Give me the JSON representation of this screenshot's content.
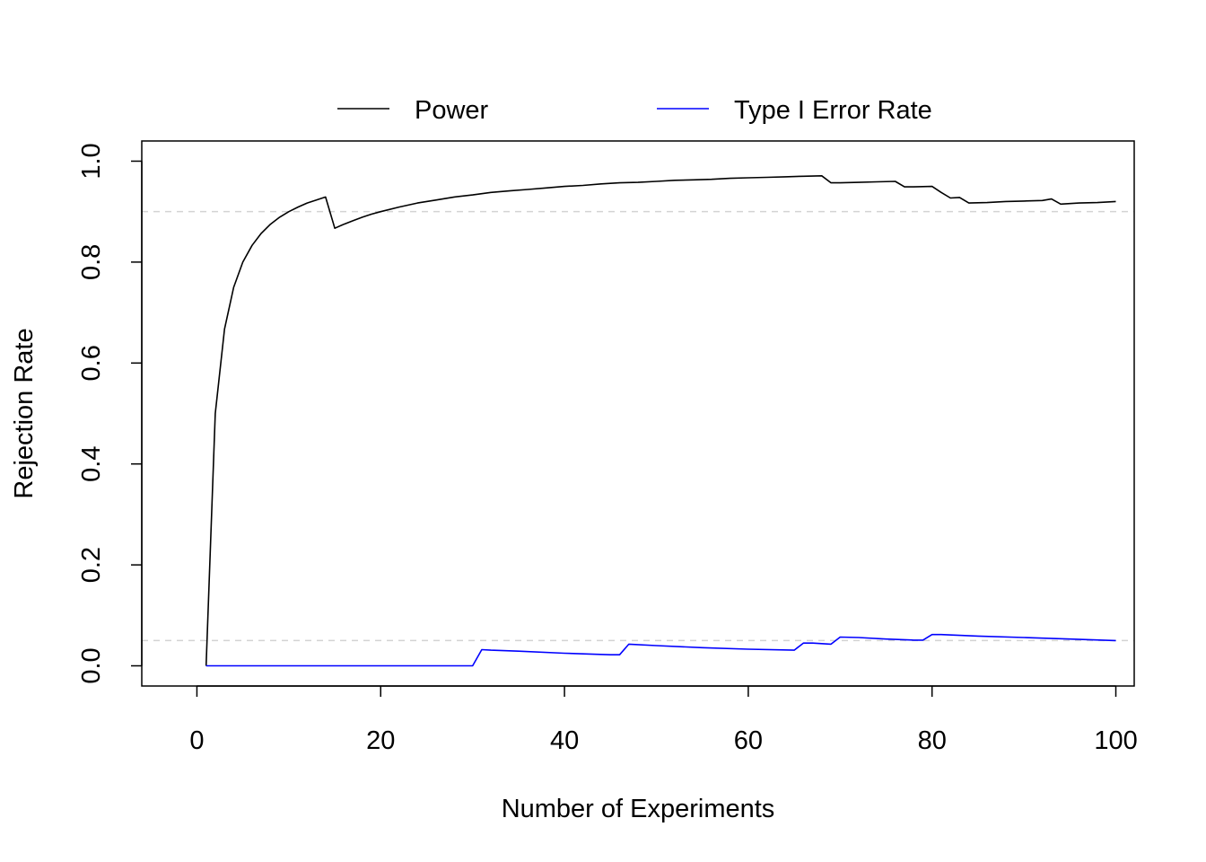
{
  "chart_data": {
    "type": "line",
    "title": "",
    "xlabel": "Number of Experiments",
    "ylabel": "Rejection Rate",
    "xlim": [
      -6,
      102
    ],
    "ylim": [
      -0.04,
      1.04
    ],
    "xticks": [
      0,
      20,
      40,
      60,
      80,
      100
    ],
    "yticks": [
      0.0,
      0.2,
      0.4,
      0.6,
      0.8,
      1.0
    ],
    "xtick_labels": [
      "0",
      "20",
      "40",
      "60",
      "80",
      "100"
    ],
    "ytick_labels": [
      "0.0",
      "0.2",
      "0.4",
      "0.6",
      "0.8",
      "1.0"
    ],
    "reference_lines": [
      0.9,
      0.05
    ],
    "legend_position": "top-center",
    "grid": false,
    "series": [
      {
        "name": "Power",
        "color": "#000000",
        "x": [
          1,
          2,
          3,
          4,
          5,
          6,
          7,
          8,
          9,
          10,
          11,
          12,
          13,
          14,
          15,
          16,
          17,
          18,
          19,
          20,
          22,
          24,
          26,
          28,
          30,
          32,
          34,
          36,
          38,
          40,
          42,
          44,
          46,
          48,
          50,
          52,
          54,
          56,
          58,
          60,
          62,
          64,
          66,
          68,
          69,
          70,
          72,
          74,
          76,
          77,
          78,
          80,
          81,
          82,
          83,
          84,
          86,
          88,
          90,
          92,
          93,
          94,
          96,
          98,
          100
        ],
        "y": [
          0.0,
          0.5,
          0.667,
          0.75,
          0.8,
          0.833,
          0.857,
          0.875,
          0.889,
          0.9,
          0.909,
          0.917,
          0.923,
          0.929,
          0.867,
          0.875,
          0.882,
          0.889,
          0.895,
          0.9,
          0.909,
          0.917,
          0.923,
          0.929,
          0.933,
          0.938,
          0.941,
          0.944,
          0.947,
          0.95,
          0.952,
          0.955,
          0.957,
          0.958,
          0.96,
          0.962,
          0.963,
          0.964,
          0.966,
          0.967,
          0.968,
          0.969,
          0.97,
          0.971,
          0.957,
          0.957,
          0.958,
          0.959,
          0.96,
          0.949,
          0.949,
          0.95,
          0.938,
          0.927,
          0.928,
          0.917,
          0.918,
          0.92,
          0.921,
          0.922,
          0.925,
          0.915,
          0.917,
          0.918,
          0.92
        ]
      },
      {
        "name": "Type I Error Rate",
        "color": "#0000ff",
        "x": [
          1,
          30,
          31,
          32,
          35,
          40,
          45,
          46,
          47,
          50,
          55,
          60,
          65,
          66,
          67,
          69,
          70,
          72,
          75,
          78,
          79,
          80,
          81,
          85,
          90,
          95,
          100
        ],
        "y": [
          0.0,
          0.0,
          0.032,
          0.031,
          0.029,
          0.025,
          0.022,
          0.022,
          0.043,
          0.04,
          0.036,
          0.033,
          0.031,
          0.045,
          0.045,
          0.043,
          0.057,
          0.056,
          0.053,
          0.051,
          0.051,
          0.062,
          0.062,
          0.059,
          0.056,
          0.053,
          0.05
        ]
      }
    ]
  }
}
